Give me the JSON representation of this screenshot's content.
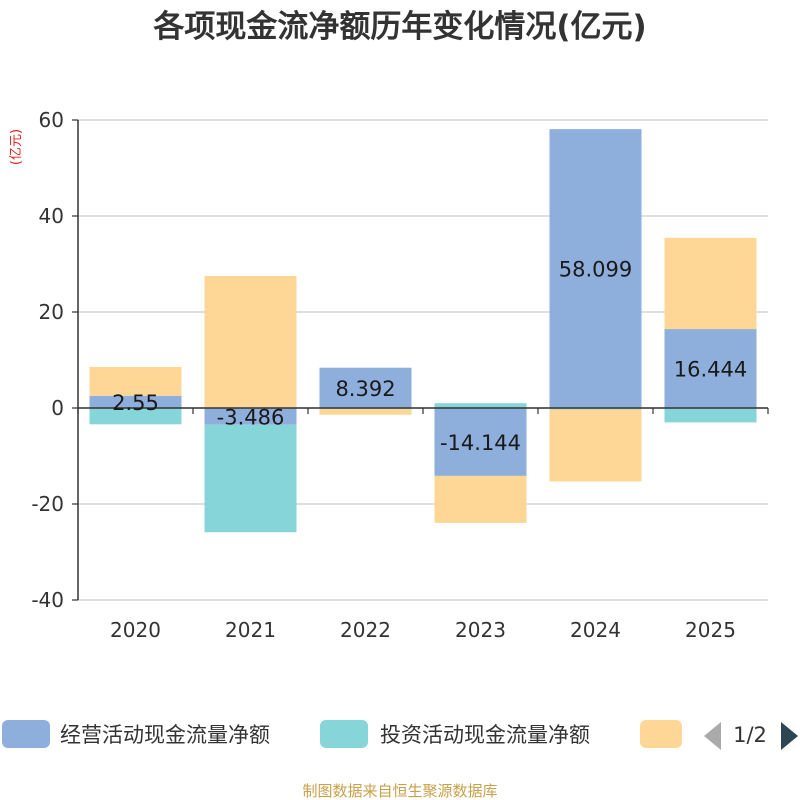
{
  "chart_data": {
    "type": "bar",
    "stacked": true,
    "title": "各项现金流净额历年变化情况(亿元)",
    "ylabel": "(亿元)",
    "xlabel": "",
    "categories": [
      "2020",
      "2021",
      "2022",
      "2023",
      "2024",
      "2025"
    ],
    "ylim": [
      -40,
      60
    ],
    "yticks": [
      60,
      40,
      20,
      0,
      -20,
      -40
    ],
    "series": [
      {
        "name": "经营活动现金流量净额",
        "color": "#8eaedb",
        "values": [
          2.55,
          -3.486,
          8.392,
          -14.144,
          58.099,
          16.444
        ]
      },
      {
        "name": "投资活动现金流量净额",
        "color": "#86d5d8",
        "values": [
          -3.4,
          -22.4,
          -0.2,
          1.0,
          -0.3,
          -3.0
        ]
      },
      {
        "name": "",
        "color": "#fed797",
        "values": [
          6.0,
          27.5,
          -1.2,
          -9.8,
          -15.0,
          19.0
        ]
      }
    ],
    "data_labels": [
      "2.55",
      "-3.486",
      "8.392",
      "-14.144",
      "58.099",
      "16.444"
    ],
    "legend_position": "bottom",
    "legend_page": "1/2",
    "source": "制图数据来自恒生聚源数据库"
  }
}
